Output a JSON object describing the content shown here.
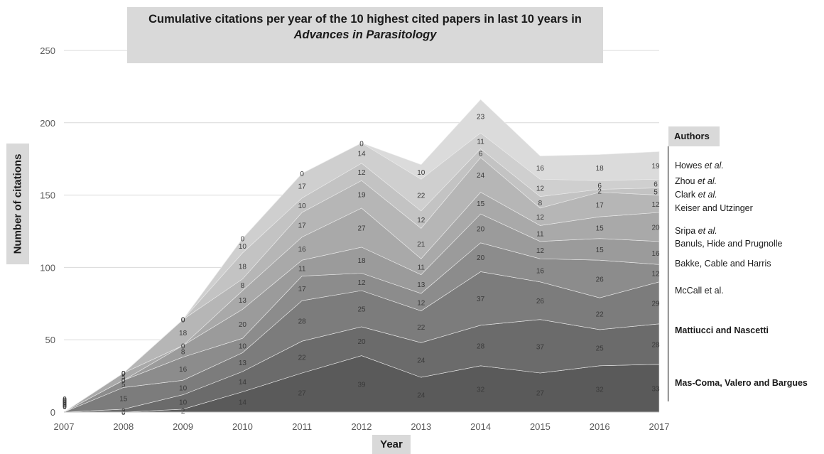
{
  "title": {
    "line1": "Cumulative citations per year of the 10 highest cited papers in last 10 years in",
    "line2": "Advances in Parasitology"
  },
  "legend_title": "Authors",
  "chart_data": {
    "type": "area",
    "stacked": true,
    "x": [
      2007,
      2008,
      2009,
      2010,
      2011,
      2012,
      2013,
      2014,
      2015,
      2016,
      2017
    ],
    "xlabel": "Year",
    "ylabel": "Number of citations",
    "ylim": [
      0,
      250
    ],
    "yticks": [
      0,
      50,
      100,
      150,
      200,
      250
    ],
    "grid": true,
    "legend_position": "right",
    "series": [
      {
        "name": "Mas-Coma, Valero and Bargues",
        "values": [
          0,
          0,
          2,
          14,
          27,
          39,
          24,
          32,
          27,
          32,
          33
        ],
        "color": "#5a5a5a"
      },
      {
        "name": "Mattiucci and Nascetti",
        "values": [
          0,
          2,
          10,
          14,
          22,
          20,
          24,
          28,
          37,
          25,
          28
        ],
        "color": "#6b6b6b"
      },
      {
        "name": "McCall et al.",
        "values": [
          0,
          15,
          10,
          13,
          28,
          25,
          22,
          37,
          26,
          22,
          29
        ],
        "color": "#7c7c7c"
      },
      {
        "name": "Bakke, Cable and Harris",
        "values": [
          0,
          5,
          16,
          10,
          17,
          12,
          12,
          20,
          16,
          26,
          12
        ],
        "color": "#8c8c8c"
      },
      {
        "name": "Banuls, Hide and Prugnolle",
        "values": [
          0,
          0,
          8,
          20,
          11,
          18,
          13,
          20,
          12,
          15,
          16
        ],
        "color": "#9b9b9b"
      },
      {
        "name": "Sripa et al.",
        "values": [
          0,
          5,
          0,
          13,
          16,
          27,
          11,
          15,
          11,
          15,
          20
        ],
        "color": "#a9a9a9"
      },
      {
        "name": "Keiser and Utzinger",
        "values": [
          0,
          0,
          18,
          8,
          17,
          19,
          21,
          24,
          12,
          17,
          12
        ],
        "color": "#b6b6b6"
      },
      {
        "name": "Clark et al.",
        "values": [
          0,
          0,
          0,
          18,
          10,
          12,
          12,
          6,
          8,
          2,
          5
        ],
        "color": "#c3c3c3"
      },
      {
        "name": "Zhou et al.",
        "values": [
          0,
          0,
          0,
          10,
          17,
          14,
          22,
          11,
          12,
          6,
          6
        ],
        "color": "#cfcfcf"
      },
      {
        "name": "Howes et al.",
        "values": [
          0,
          0,
          0,
          0,
          0,
          0,
          10,
          23,
          16,
          18,
          19
        ],
        "color": "#dbdbdb"
      }
    ]
  },
  "legend": [
    {
      "text": "Howes ",
      "em": "et al.",
      "bold": false
    },
    {
      "text": "Zhou ",
      "em": "et al.",
      "bold": false
    },
    {
      "text": "Clark ",
      "em": "et al.",
      "bold": false
    },
    {
      "text": "Keiser and Utzinger",
      "em": "",
      "bold": false
    },
    {
      "text": "Sripa ",
      "em": "et al.",
      "bold": false
    },
    {
      "text": "Banuls, Hide and Prugnolle",
      "em": "",
      "bold": false
    },
    {
      "text": "Bakke, Cable and Harris",
      "em": "",
      "bold": false
    },
    {
      "text": "McCall et al.",
      "em": "",
      "bold": false
    },
    {
      "text": "Mattiucci and Nascetti",
      "em": "",
      "bold": true
    },
    {
      "text": "Mas-Coma, Valero and Bargues",
      "em": "",
      "bold": true
    }
  ]
}
